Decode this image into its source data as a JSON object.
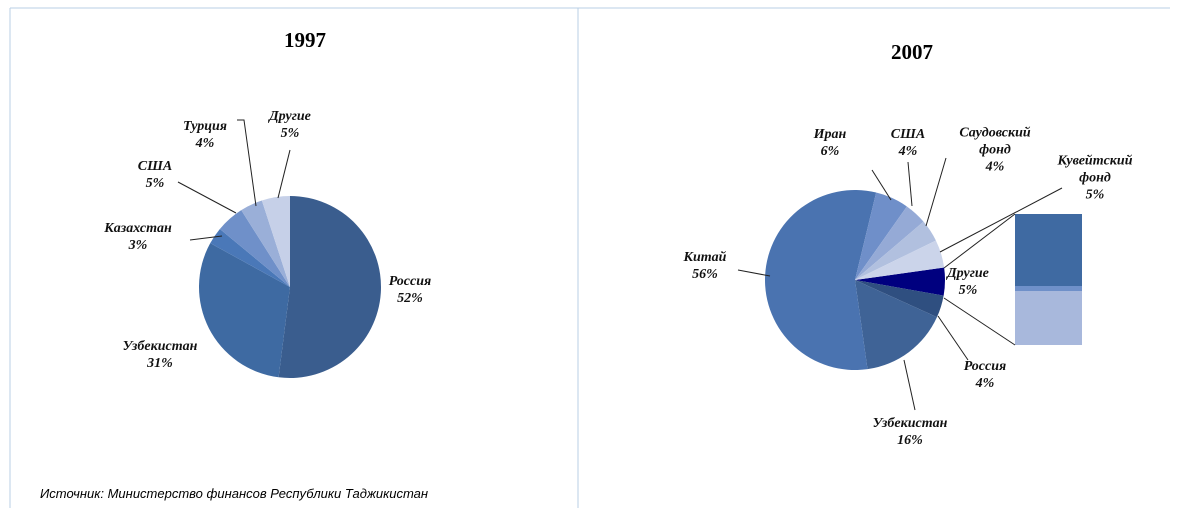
{
  "chart_data": [
    {
      "type": "pie",
      "title": "1997",
      "start_angle": 0,
      "categories": [
        "Россия",
        "Узбекистан",
        "Казахстан",
        "США",
        "Турция",
        "Другие"
      ],
      "values": [
        52,
        31,
        3,
        5,
        4,
        5
      ],
      "value_labels": [
        "52%",
        "31%",
        "3%",
        "5%",
        "4%",
        "5%"
      ],
      "colors": [
        "#3a5d8e",
        "#3e6aa2",
        "#4a78b8",
        "#6f90c9",
        "#9aafd8",
        "#c6d0e8"
      ]
    },
    {
      "type": "pie",
      "title": "2007",
      "start_angle": 82,
      "categories": [
        "Другие",
        "Россия",
        "Узбекистан",
        "Китай",
        "Иран",
        "США",
        "Саудовский фонд",
        "Кувейтский фонд"
      ],
      "values": [
        5,
        4,
        16,
        56,
        6,
        4,
        4,
        5
      ],
      "value_labels": [
        "5%",
        "4%",
        "16%",
        "56%",
        "6%",
        "4%",
        "4%",
        "5%"
      ],
      "colors": [
        "#00007f",
        "#2f4f80",
        "#3f6396",
        "#4a73b0",
        "#6f8fc9",
        "#95aad6",
        "#b1c0df",
        "#cbd4ea"
      ]
    }
  ],
  "source": "Источник: Министерство финансов Республики Таджикистан"
}
